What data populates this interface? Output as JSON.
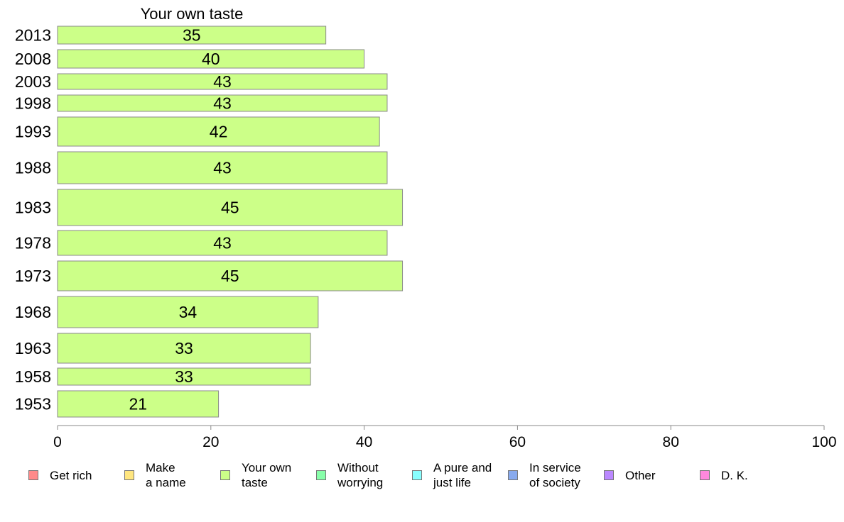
{
  "chart_data": {
    "type": "bar",
    "orientation": "horizontal",
    "stacked": true,
    "title": "Your own taste",
    "categories": [
      "2013",
      "2008",
      "2003",
      "1998",
      "1993",
      "1988",
      "1983",
      "1978",
      "1973",
      "1968",
      "1963",
      "1958",
      "1953"
    ],
    "series": [
      {
        "name": "Your own taste",
        "color": "#ccff88",
        "values": [
          35,
          40,
          43,
          43,
          42,
          43,
          45,
          43,
          45,
          34,
          33,
          33,
          21
        ]
      }
    ],
    "xlim": [
      0,
      100
    ],
    "xticks": [
      0,
      20,
      40,
      60,
      80,
      100
    ],
    "grid": false,
    "legend_position": "bottom"
  },
  "legend": [
    {
      "label": "Get rich",
      "color": "#ff8a8a"
    },
    {
      "label": "Make\na name",
      "color": "#ffe680"
    },
    {
      "label": "Your own\ntaste",
      "color": "#ccff88"
    },
    {
      "label": "Without\nworrying",
      "color": "#88ffaa"
    },
    {
      "label": "A pure and\njust life",
      "color": "#88ffff"
    },
    {
      "label": "In service\nof society",
      "color": "#88aaee"
    },
    {
      "label": "Other",
      "color": "#bb88ff"
    },
    {
      "label": "D. K.",
      "color": "#ff88dd"
    }
  ]
}
